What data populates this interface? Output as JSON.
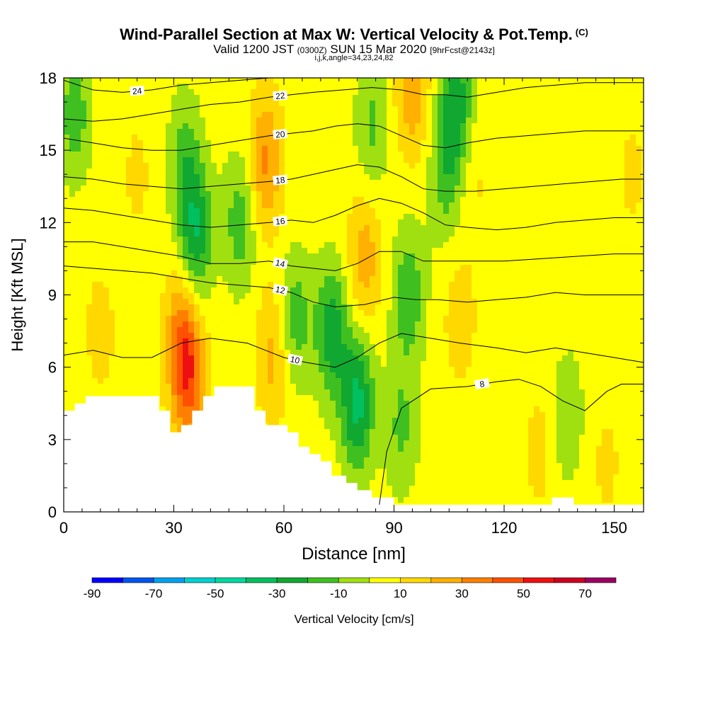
{
  "title": {
    "main": "Wind-Parallel Section at Max W: Vertical Velocity & Pot.Temp.",
    "copyright": "(C)",
    "valid_prefix": "Valid 1200 JST",
    "valid_utc": "(0300Z)",
    "valid_date": "SUN 15 Mar 2020",
    "forecast": "[9hrFcst@2143z]",
    "grid_info": "i,j,k,angle=34,23,24,82"
  },
  "chart_data": {
    "type": "contour",
    "xlabel": "Distance [nm]",
    "ylabel": "Height [Kft MSL]",
    "xlim": [
      0,
      158
    ],
    "ylim": [
      0,
      18
    ],
    "xticks": [
      0,
      30,
      60,
      90,
      120,
      150
    ],
    "yticks": [
      0,
      3,
      6,
      9,
      12,
      15,
      18
    ],
    "colorbar": {
      "label": "Vertical Velocity [cm/s]",
      "ticks": [
        -90,
        -70,
        -50,
        -30,
        -10,
        10,
        30,
        50,
        70
      ],
      "boundaries": [
        -90,
        -80,
        -70,
        -60,
        -50,
        -40,
        -30,
        -20,
        -10,
        0,
        10,
        20,
        30,
        40,
        50,
        60,
        70,
        80
      ],
      "colors": [
        "#0000ff",
        "#0055ee",
        "#00a0ee",
        "#00d0d0",
        "#00d8a0",
        "#00c060",
        "#10a830",
        "#40c020",
        "#a0e010",
        "#ffff00",
        "#ffd800",
        "#ffb000",
        "#ff8000",
        "#ff5000",
        "#ee1010",
        "#cc0020",
        "#9a0060",
        "#6a0090"
      ]
    },
    "velocity_field": {
      "background_value": 5,
      "features": [
        {
          "x": 34,
          "y": 5.5,
          "value": 42
        },
        {
          "x": 32,
          "y": 7.5,
          "value": 28
        },
        {
          "x": 10,
          "y": 7.5,
          "value": 14
        },
        {
          "x": 55,
          "y": 14.5,
          "value": 32
        },
        {
          "x": 57,
          "y": 6.5,
          "value": 24
        },
        {
          "x": 36,
          "y": 11.5,
          "value": -28
        },
        {
          "x": 33,
          "y": 14.5,
          "value": -14
        },
        {
          "x": 48,
          "y": 12,
          "value": -16
        },
        {
          "x": 80,
          "y": 4.5,
          "value": -34
        },
        {
          "x": 73,
          "y": 7.5,
          "value": -26
        },
        {
          "x": 63,
          "y": 8,
          "value": -16
        },
        {
          "x": 84,
          "y": 16,
          "value": -12
        },
        {
          "x": 107,
          "y": 17,
          "value": -26
        },
        {
          "x": 104,
          "y": 14,
          "value": -14
        },
        {
          "x": 94,
          "y": 9,
          "value": -18
        },
        {
          "x": 92,
          "y": 3.5,
          "value": -12
        },
        {
          "x": 3,
          "y": 16.5,
          "value": -16
        },
        {
          "x": 82,
          "y": 10.5,
          "value": 26
        },
        {
          "x": 95,
          "y": 17.5,
          "value": 28
        },
        {
          "x": 112,
          "y": 14,
          "value": 12
        },
        {
          "x": 108,
          "y": 8,
          "value": 16
        },
        {
          "x": 130,
          "y": 2.5,
          "value": 14
        },
        {
          "x": 155,
          "y": 14,
          "value": 12
        },
        {
          "x": 133,
          "y": 9,
          "value": 10
        },
        {
          "x": 148,
          "y": 2,
          "value": 12
        },
        {
          "x": 137,
          "y": 4,
          "value": -10
        },
        {
          "x": 20,
          "y": 14,
          "value": 12
        }
      ]
    },
    "theta_contours": [
      {
        "label": "8",
        "points": [
          [
            86,
            0.3
          ],
          [
            88,
            2.5
          ],
          [
            92,
            4.3
          ],
          [
            100,
            5.1
          ],
          [
            110,
            5.2
          ],
          [
            118,
            5.4
          ],
          [
            124,
            5.5
          ],
          [
            130,
            5.2
          ],
          [
            136,
            4.6
          ],
          [
            142,
            4.2
          ],
          [
            148,
            5
          ],
          [
            152,
            5.3
          ],
          [
            158,
            5.3
          ]
        ]
      },
      {
        "label": "10",
        "points": [
          [
            0,
            6.5
          ],
          [
            8,
            6.7
          ],
          [
            16,
            6.4
          ],
          [
            24,
            6.4
          ],
          [
            32,
            7
          ],
          [
            40,
            7.2
          ],
          [
            50,
            7
          ],
          [
            60,
            6.4
          ],
          [
            66,
            6.2
          ],
          [
            74,
            6
          ],
          [
            80,
            6.4
          ],
          [
            86,
            7
          ],
          [
            92,
            7.4
          ],
          [
            100,
            7.2
          ],
          [
            108,
            7
          ],
          [
            118,
            6.8
          ],
          [
            126,
            6.6
          ],
          [
            134,
            6.8
          ],
          [
            142,
            6.6
          ],
          [
            150,
            6.4
          ],
          [
            158,
            6.2
          ]
        ]
      },
      {
        "label": "12",
        "points": [
          [
            0,
            10.2
          ],
          [
            8,
            10.1
          ],
          [
            16,
            10
          ],
          [
            24,
            9.9
          ],
          [
            32,
            9.7
          ],
          [
            40,
            9.5
          ],
          [
            48,
            9.4
          ],
          [
            56,
            9.3
          ],
          [
            62,
            9.1
          ],
          [
            68,
            8.7
          ],
          [
            74,
            8.5
          ],
          [
            82,
            8.6
          ],
          [
            90,
            8.9
          ],
          [
            96,
            8.8
          ],
          [
            102,
            8.8
          ],
          [
            110,
            8.7
          ],
          [
            118,
            8.8
          ],
          [
            126,
            8.9
          ],
          [
            134,
            9.1
          ],
          [
            142,
            9
          ],
          [
            150,
            9
          ],
          [
            158,
            9
          ]
        ]
      },
      {
        "label": "14",
        "points": [
          [
            0,
            11.2
          ],
          [
            8,
            11.2
          ],
          [
            16,
            11
          ],
          [
            24,
            10.8
          ],
          [
            32,
            10.6
          ],
          [
            40,
            10.3
          ],
          [
            48,
            10.3
          ],
          [
            56,
            10.4
          ],
          [
            62,
            10.2
          ],
          [
            68,
            10.1
          ],
          [
            74,
            10
          ],
          [
            80,
            10.3
          ],
          [
            86,
            10.8
          ],
          [
            92,
            10.8
          ],
          [
            98,
            10.4
          ],
          [
            104,
            10.4
          ],
          [
            112,
            10.4
          ],
          [
            120,
            10.4
          ],
          [
            130,
            10.5
          ],
          [
            140,
            10.6
          ],
          [
            150,
            10.7
          ],
          [
            158,
            10.7
          ]
        ]
      },
      {
        "label": "16",
        "points": [
          [
            0,
            12.6
          ],
          [
            8,
            12.5
          ],
          [
            16,
            12.3
          ],
          [
            24,
            12.1
          ],
          [
            32,
            11.9
          ],
          [
            40,
            11.8
          ],
          [
            48,
            11.9
          ],
          [
            56,
            12
          ],
          [
            62,
            12.1
          ],
          [
            68,
            12
          ],
          [
            74,
            12.3
          ],
          [
            80,
            12.7
          ],
          [
            86,
            13
          ],
          [
            92,
            12.8
          ],
          [
            98,
            12.4
          ],
          [
            104,
            11.9
          ],
          [
            110,
            11.8
          ],
          [
            118,
            11.7
          ],
          [
            126,
            11.8
          ],
          [
            134,
            12
          ],
          [
            142,
            12.1
          ],
          [
            150,
            12.2
          ],
          [
            158,
            12.2
          ]
        ]
      },
      {
        "label": "18",
        "points": [
          [
            0,
            13.9
          ],
          [
            8,
            13.8
          ],
          [
            16,
            13.6
          ],
          [
            24,
            13.5
          ],
          [
            32,
            13.4
          ],
          [
            40,
            13.5
          ],
          [
            48,
            13.6
          ],
          [
            56,
            13.7
          ],
          [
            62,
            13.8
          ],
          [
            68,
            14
          ],
          [
            74,
            14.2
          ],
          [
            80,
            14.4
          ],
          [
            86,
            14.3
          ],
          [
            92,
            13.9
          ],
          [
            98,
            13.4
          ],
          [
            104,
            13.3
          ],
          [
            112,
            13.3
          ],
          [
            120,
            13.4
          ],
          [
            128,
            13.5
          ],
          [
            136,
            13.6
          ],
          [
            144,
            13.7
          ],
          [
            152,
            13.8
          ],
          [
            158,
            13.8
          ]
        ]
      },
      {
        "label": "20",
        "points": [
          [
            0,
            15.5
          ],
          [
            8,
            15.3
          ],
          [
            16,
            15.1
          ],
          [
            24,
            15
          ],
          [
            32,
            15
          ],
          [
            40,
            15.2
          ],
          [
            48,
            15.4
          ],
          [
            56,
            15.6
          ],
          [
            62,
            15.7
          ],
          [
            68,
            15.8
          ],
          [
            74,
            16
          ],
          [
            80,
            16.1
          ],
          [
            86,
            16
          ],
          [
            92,
            15.6
          ],
          [
            98,
            15.2
          ],
          [
            104,
            15.1
          ],
          [
            110,
            15.3
          ],
          [
            118,
            15.5
          ],
          [
            126,
            15.6
          ],
          [
            134,
            15.7
          ],
          [
            142,
            15.8
          ],
          [
            150,
            15.8
          ],
          [
            158,
            15.8
          ]
        ]
      },
      {
        "label": "22",
        "points": [
          [
            0,
            16.3
          ],
          [
            8,
            16.2
          ],
          [
            16,
            16.3
          ],
          [
            24,
            16.5
          ],
          [
            32,
            16.7
          ],
          [
            40,
            16.9
          ],
          [
            48,
            17
          ],
          [
            56,
            17.2
          ],
          [
            62,
            17.3
          ],
          [
            68,
            17.4
          ],
          [
            76,
            17.5
          ],
          [
            84,
            17.6
          ],
          [
            92,
            17.5
          ],
          [
            98,
            17.3
          ],
          [
            104,
            17.3
          ],
          [
            110,
            17.2
          ],
          [
            118,
            17.4
          ],
          [
            126,
            17.6
          ],
          [
            134,
            17.7
          ],
          [
            142,
            17.8
          ],
          [
            150,
            17.8
          ],
          [
            158,
            17.8
          ]
        ]
      },
      {
        "label": "24",
        "points": [
          [
            0,
            17.9
          ],
          [
            8,
            17.5
          ],
          [
            16,
            17.4
          ],
          [
            24,
            17.5
          ],
          [
            32,
            17.7
          ],
          [
            40,
            17.8
          ],
          [
            48,
            17.9
          ],
          [
            56,
            18
          ]
        ]
      }
    ],
    "terrain_profile": [
      [
        0,
        4.2
      ],
      [
        3,
        4.2
      ],
      [
        3,
        4.5
      ],
      [
        6,
        4.5
      ],
      [
        6,
        4.8
      ],
      [
        26,
        4.8
      ],
      [
        26,
        4.2
      ],
      [
        29,
        4.2
      ],
      [
        29,
        3.3
      ],
      [
        32,
        3.3
      ],
      [
        32,
        3.6
      ],
      [
        35,
        3.6
      ],
      [
        35,
        4.2
      ],
      [
        38,
        4.2
      ],
      [
        38,
        4.8
      ],
      [
        41,
        4.8
      ],
      [
        41,
        5.2
      ],
      [
        52,
        5.2
      ],
      [
        52,
        4.2
      ],
      [
        55,
        4.2
      ],
      [
        55,
        3.6
      ],
      [
        61,
        3.6
      ],
      [
        61,
        3.3
      ],
      [
        64,
        3.3
      ],
      [
        64,
        2.7
      ],
      [
        67,
        2.7
      ],
      [
        67,
        2.4
      ],
      [
        70,
        2.4
      ],
      [
        70,
        2.1
      ],
      [
        73,
        2.1
      ],
      [
        73,
        1.5
      ],
      [
        77,
        1.5
      ],
      [
        77,
        1.2
      ],
      [
        80,
        1.2
      ],
      [
        80,
        0.9
      ],
      [
        84,
        0.9
      ],
      [
        84,
        0.6
      ],
      [
        90,
        0.6
      ],
      [
        90,
        0.3
      ],
      [
        133,
        0.3
      ],
      [
        133,
        0.6
      ],
      [
        139,
        0.6
      ],
      [
        139,
        0.3
      ],
      [
        158,
        0.3
      ]
    ]
  }
}
